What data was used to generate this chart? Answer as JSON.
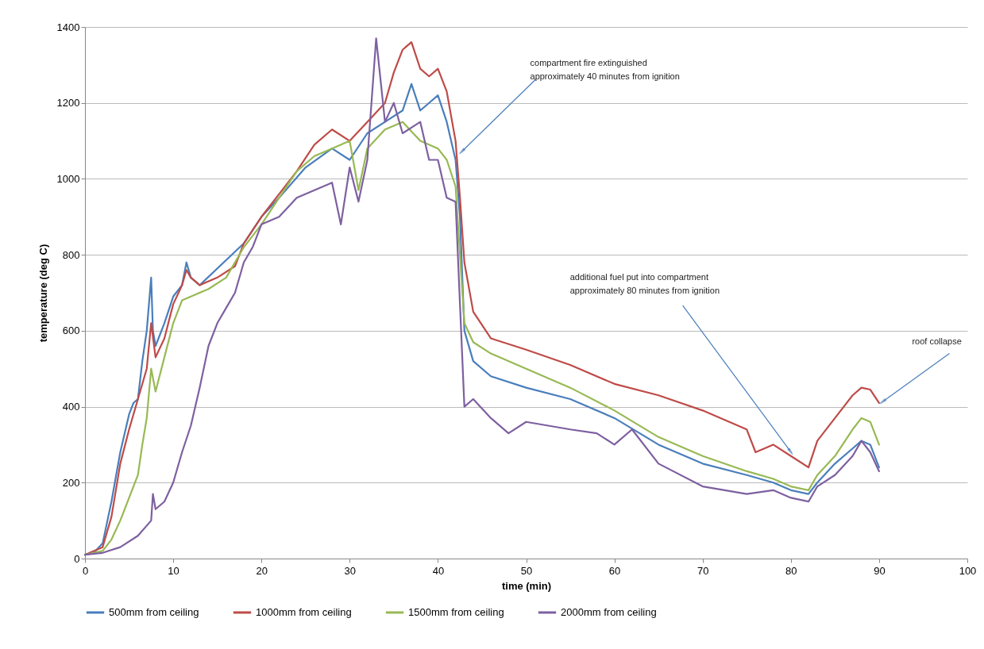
{
  "chart_data": {
    "type": "line",
    "xlabel": "time (min)",
    "ylabel": "temperature (deg C)",
    "xlim": [
      0,
      100
    ],
    "ylim": [
      0,
      1400
    ],
    "xticks": [
      0,
      10,
      20,
      30,
      40,
      50,
      60,
      70,
      80,
      90,
      100
    ],
    "yticks": [
      0,
      200,
      400,
      600,
      800,
      1000,
      1200,
      1400
    ],
    "grid": "y",
    "legend": "bottom",
    "line_style": "solid",
    "marker": "none",
    "series": [
      {
        "name": "500mm from ceiling",
        "color": "#4a7ebb",
        "x": [
          0,
          1,
          2,
          3,
          4,
          5,
          5.5,
          6,
          6.5,
          7,
          7.5,
          7.7,
          8,
          9,
          10,
          11,
          11.5,
          12,
          13,
          18,
          20,
          22,
          25,
          28,
          30,
          32,
          34,
          36,
          37,
          38,
          39,
          40,
          41,
          42,
          42.5,
          43,
          44,
          46,
          50,
          55,
          60,
          65,
          70,
          75,
          78,
          80,
          82,
          83,
          85,
          87,
          88,
          89,
          90
        ],
        "values": [
          10,
          15,
          40,
          150,
          280,
          380,
          410,
          420,
          520,
          600,
          740,
          600,
          560,
          620,
          690,
          720,
          780,
          740,
          720,
          830,
          900,
          950,
          1030,
          1080,
          1050,
          1120,
          1150,
          1180,
          1250,
          1180,
          1200,
          1220,
          1150,
          1050,
          900,
          600,
          520,
          480,
          450,
          420,
          370,
          300,
          250,
          220,
          200,
          180,
          170,
          200,
          250,
          290,
          310,
          300,
          240
        ]
      },
      {
        "name": "1000mm from ceiling",
        "color": "#be4b48",
        "x": [
          0,
          2,
          3,
          4,
          5,
          6,
          7,
          7.5,
          8,
          9,
          10,
          11,
          11.5,
          12,
          13,
          15,
          17,
          18,
          20,
          22,
          24,
          26,
          28,
          30,
          32,
          34,
          35,
          36,
          37,
          38,
          39,
          40,
          41,
          42,
          42.5,
          43,
          44,
          46,
          50,
          55,
          60,
          65,
          70,
          75,
          76,
          78,
          80,
          82,
          83,
          85,
          87,
          88,
          89,
          90
        ],
        "values": [
          10,
          30,
          110,
          250,
          340,
          420,
          500,
          620,
          530,
          580,
          670,
          720,
          760,
          740,
          720,
          740,
          770,
          830,
          900,
          960,
          1020,
          1090,
          1130,
          1100,
          1150,
          1200,
          1280,
          1340,
          1360,
          1290,
          1270,
          1290,
          1230,
          1100,
          950,
          780,
          650,
          580,
          550,
          510,
          460,
          430,
          390,
          340,
          280,
          300,
          270,
          240,
          310,
          370,
          430,
          450,
          445,
          410
        ]
      },
      {
        "name": "1500mm from ceiling",
        "color": "#98b954",
        "x": [
          0,
          2,
          3,
          4,
          5,
          6,
          6.5,
          7,
          7.5,
          8,
          9,
          10,
          11,
          12,
          14,
          16,
          18,
          20,
          22,
          24,
          26,
          28,
          30,
          31,
          32,
          34,
          36,
          38,
          40,
          41,
          42,
          43,
          44,
          46,
          50,
          55,
          60,
          65,
          70,
          75,
          78,
          80,
          82,
          83,
          85,
          87,
          88,
          89,
          90
        ],
        "values": [
          10,
          20,
          50,
          100,
          160,
          220,
          300,
          370,
          500,
          440,
          530,
          620,
          680,
          690,
          710,
          740,
          820,
          880,
          950,
          1020,
          1060,
          1080,
          1100,
          970,
          1080,
          1130,
          1150,
          1100,
          1080,
          1050,
          980,
          620,
          570,
          540,
          500,
          450,
          390,
          320,
          270,
          230,
          210,
          190,
          180,
          220,
          270,
          340,
          370,
          360,
          300
        ]
      },
      {
        "name": "2000mm from ceiling",
        "color": "#7d60a0",
        "x": [
          0,
          2,
          4,
          6,
          7.5,
          7.7,
          8,
          9,
          10,
          11,
          12,
          13,
          14,
          15,
          16,
          17,
          18,
          19,
          20,
          22,
          24,
          26,
          28,
          29,
          30,
          31,
          32,
          33,
          34,
          35,
          36,
          38,
          39,
          40,
          41,
          42,
          43,
          44,
          46,
          48,
          50,
          55,
          58,
          60,
          62,
          65,
          70,
          75,
          78,
          80,
          82,
          83,
          85,
          87,
          88,
          89,
          90
        ],
        "values": [
          10,
          15,
          30,
          60,
          100,
          170,
          130,
          150,
          200,
          280,
          350,
          450,
          560,
          620,
          660,
          700,
          780,
          820,
          880,
          900,
          950,
          970,
          990,
          880,
          1030,
          940,
          1050,
          1370,
          1150,
          1200,
          1120,
          1150,
          1050,
          1050,
          950,
          940,
          400,
          420,
          370,
          330,
          360,
          340,
          330,
          300,
          340,
          250,
          190,
          170,
          180,
          160,
          150,
          190,
          220,
          270,
          310,
          280,
          230
        ]
      }
    ],
    "annotations": [
      {
        "text": "compartment fire extinguished\napproximately 40 minutes from ignition",
        "x": 42.8,
        "y": 1074
      },
      {
        "text": "additional fuel put into compartment\napproximately 80 minutes from ignition",
        "x": 79.9,
        "y": 284
      },
      {
        "text": "roof collapse",
        "x": 90.5,
        "y": 415
      }
    ]
  }
}
